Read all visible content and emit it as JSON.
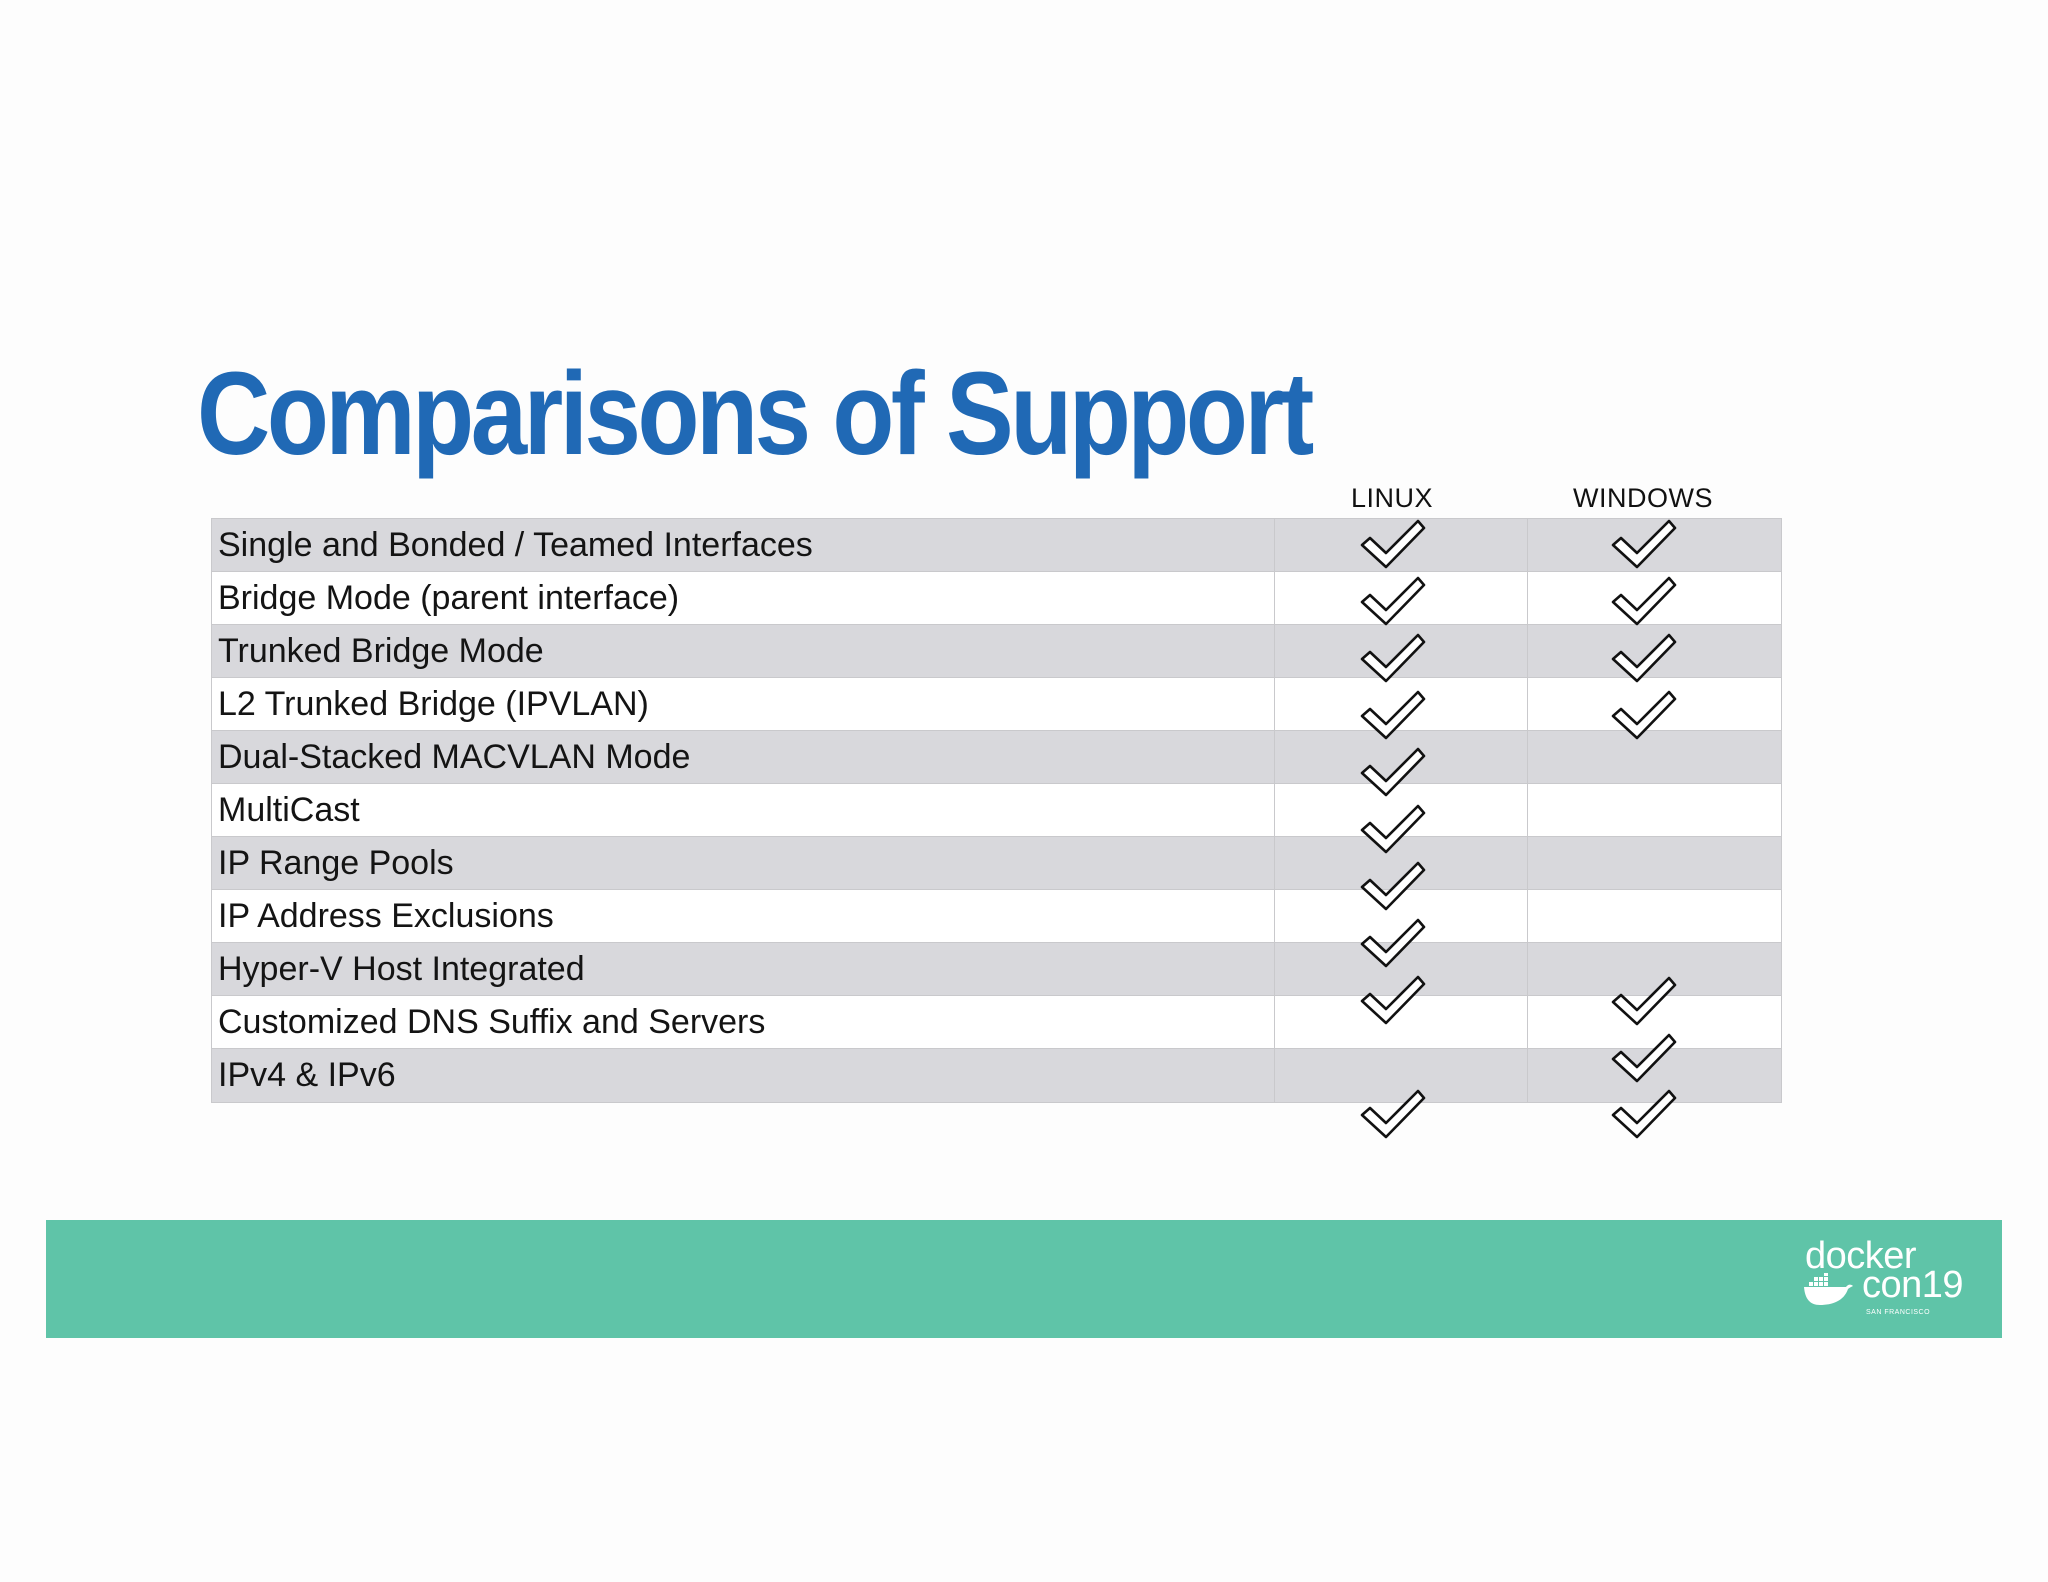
{
  "slide": {
    "title": "Comparisons of Support",
    "title_color": "#2069b5",
    "band_color": "#5fc4a8"
  },
  "table": {
    "columns": [
      "LINUX",
      "WINDOWS"
    ],
    "rows": [
      {
        "feature": "Single and Bonded / Teamed Interfaces"
      },
      {
        "feature": "Bridge Mode (parent interface)"
      },
      {
        "feature": "Trunked Bridge Mode"
      },
      {
        "feature": "L2 Trunked Bridge (IPVLAN)"
      },
      {
        "feature": "Dual-Stacked MACVLAN Mode"
      },
      {
        "feature": "MultiCast"
      },
      {
        "feature": "IP Range Pools"
      },
      {
        "feature": "IP Address Exclusions"
      },
      {
        "feature": "Hyper-V Host Integrated"
      },
      {
        "feature": "Customized DNS Suffix and Servers"
      },
      {
        "feature": "IPv4 & IPv6"
      }
    ],
    "check_icon": "checkmark-icon",
    "linux_checks": 9,
    "windows_checks": 4,
    "windows_checks_lower": 2,
    "bottom_checks": [
      "LINUX",
      "WINDOWS"
    ]
  },
  "logo": {
    "line1": "docker",
    "line2": "con",
    "year": "19",
    "city": "SAN FRANCISCO",
    "icon": "docker-whale-icon"
  }
}
